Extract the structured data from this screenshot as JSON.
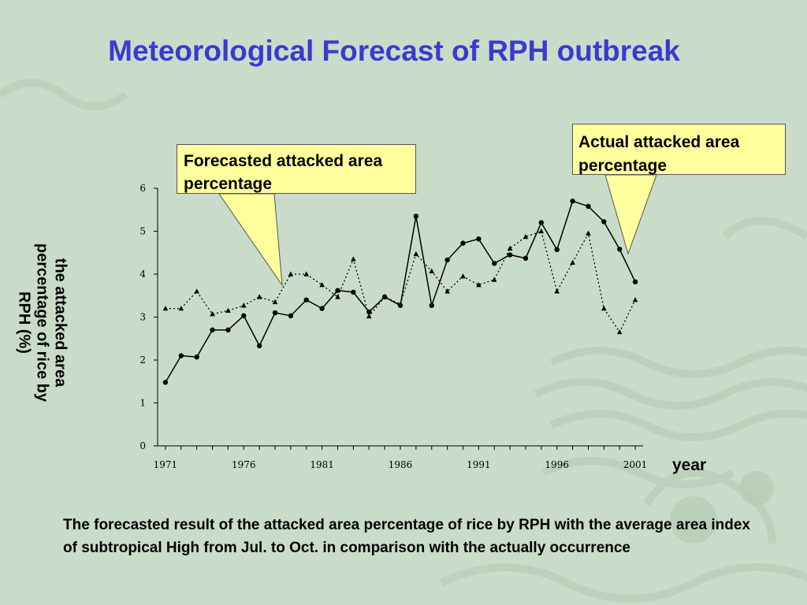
{
  "slide": {
    "title": "Meteorological Forecast of RPH outbreak",
    "caption": "The forecasted result of the attacked  area percentage of rice by RPH with  the average area index of subtropical High from Jul. to Oct. in comparison with the actually occurrence"
  },
  "callouts": {
    "forecast": "Forecasted attacked area percentage",
    "actual": "Actual attacked area percentage"
  },
  "colors": {
    "background": "#c9dcc9",
    "title": "#3a3ad2",
    "callout_fill": "#ffff9e"
  },
  "chart_data": {
    "type": "line",
    "title": "",
    "xlabel": "year",
    "ylabel_lines": [
      "the attacked  area",
      "percentage of rice by",
      "RPH (%)"
    ],
    "x": [
      1971,
      1972,
      1973,
      1974,
      1975,
      1976,
      1977,
      1978,
      1979,
      1980,
      1981,
      1982,
      1983,
      1984,
      1985,
      1986,
      1987,
      1988,
      1989,
      1990,
      1991,
      1992,
      1993,
      1994,
      1995,
      1996,
      1997,
      1998,
      1999,
      2000,
      2001
    ],
    "xticks": [
      "1971",
      "1976",
      "1981",
      "1986",
      "1991",
      "1996",
      "2001"
    ],
    "yticks": [
      "0",
      "1",
      "2",
      "3",
      "4",
      "5",
      "6"
    ],
    "ylim": [
      0,
      6
    ],
    "xlim": [
      1970.5,
      2001.5
    ],
    "grid": false,
    "series": [
      {
        "name": "Actual attacked area percentage",
        "style": "solid-circle",
        "values": [
          1.48,
          2.1,
          2.07,
          2.7,
          2.7,
          3.03,
          2.33,
          3.1,
          3.03,
          3.4,
          3.2,
          3.62,
          3.58,
          3.12,
          3.47,
          3.27,
          5.35,
          3.27,
          4.33,
          4.72,
          4.82,
          4.25,
          4.45,
          4.37,
          5.2,
          4.57,
          5.7,
          5.58,
          5.22,
          4.58,
          3.82
        ]
      },
      {
        "name": "Forecasted attacked area percentage",
        "style": "dotted-triangle",
        "values": [
          3.2,
          3.2,
          3.6,
          3.07,
          3.15,
          3.27,
          3.47,
          3.35,
          4.0,
          4.0,
          3.75,
          3.47,
          4.35,
          3.02,
          3.47,
          3.3,
          4.47,
          4.07,
          3.6,
          3.95,
          3.75,
          3.87,
          4.6,
          4.87,
          5.0,
          3.6,
          4.27,
          4.95,
          3.2,
          2.65,
          3.4
        ]
      }
    ]
  }
}
